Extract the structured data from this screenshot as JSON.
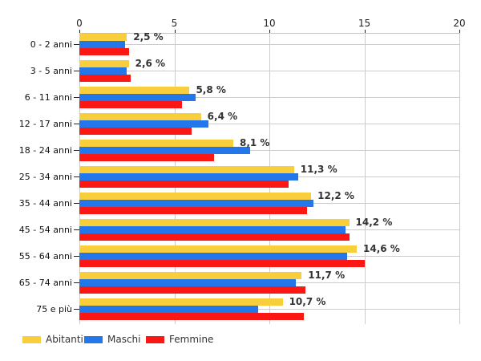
{
  "chart_data": {
    "type": "bar",
    "orientation": "horizontal",
    "title": "",
    "categories": [
      "0 - 2 anni",
      "3 - 5 anni",
      "6 - 11 anni",
      "12 - 17 anni",
      "18 - 24 anni",
      "25 - 34 anni",
      "35 - 44 anni",
      "45 - 54 anni",
      "55 - 64 anni",
      "65 - 74 anni",
      "75 e più"
    ],
    "series": [
      {
        "name": "Abitanti",
        "color": "#F9CE3C",
        "values": [
          2.5,
          2.6,
          5.8,
          6.4,
          8.1,
          11.3,
          12.2,
          14.2,
          14.6,
          11.7,
          10.7
        ]
      },
      {
        "name": "Maschi",
        "color": "#2377EB",
        "values": [
          2.4,
          2.5,
          6.1,
          6.8,
          9.0,
          11.5,
          12.3,
          14.0,
          14.1,
          11.4,
          9.4
        ]
      },
      {
        "name": "Femmine",
        "color": "#FB1713",
        "values": [
          2.6,
          2.7,
          5.4,
          5.9,
          7.1,
          11.0,
          12.0,
          14.2,
          15.0,
          11.9,
          11.8
        ]
      }
    ],
    "value_labels": [
      "2,5 %",
      "2,6 %",
      "5,8 %",
      "6,4 %",
      "8,1 %",
      "11,3 %",
      "12,2 %",
      "14,2 %",
      "14,6 %",
      "11,7 %",
      "10,7 %"
    ],
    "value_label_series": "Abitanti",
    "axis": {
      "position": "top",
      "min": 0,
      "max": 20,
      "ticks": [
        0,
        5,
        10,
        15,
        20
      ],
      "tick_labels": [
        "0",
        "5",
        "10",
        "15",
        "20"
      ]
    },
    "grid": true,
    "legend_position": "bottom",
    "grid_color": "#cccccc"
  }
}
